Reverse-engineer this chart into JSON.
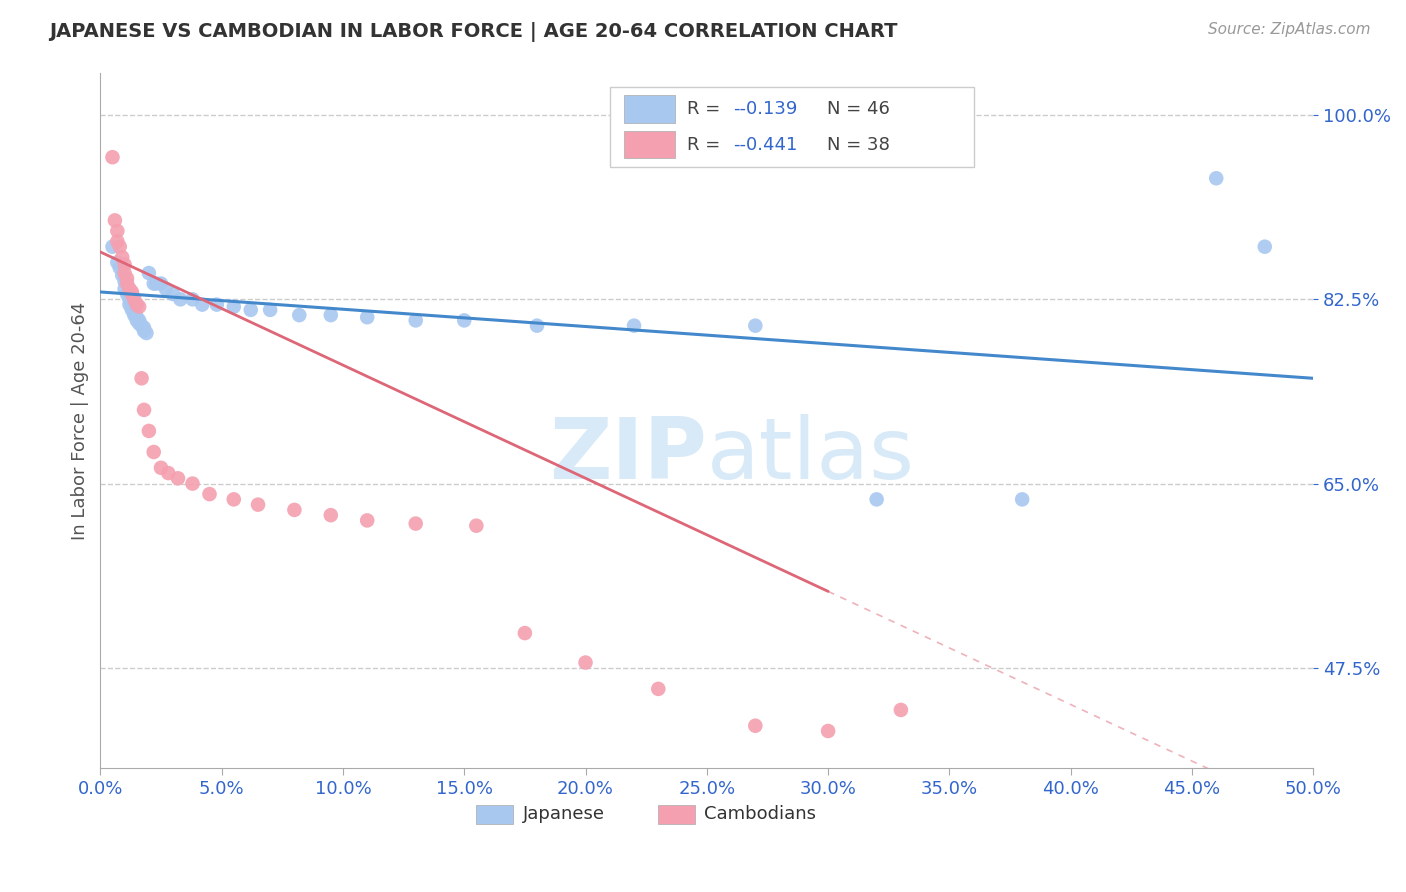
{
  "title": "JAPANESE VS CAMBODIAN IN LABOR FORCE | AGE 20-64 CORRELATION CHART",
  "source_text": "Source: ZipAtlas.com",
  "ylabel": "In Labor Force | Age 20-64",
  "xlim": [
    0.0,
    0.5
  ],
  "ylim": [
    0.38,
    1.04
  ],
  "ytick_vals": [
    0.475,
    0.65,
    0.825,
    1.0
  ],
  "legend_r_japanese": "-0.139",
  "legend_n_japanese": "46",
  "legend_r_cambodian": "-0.441",
  "legend_n_cambodian": "38",
  "japanese_color": "#a8c8f0",
  "cambodian_color": "#f4a0b0",
  "japanese_line_color": "#4488cc",
  "cambodian_line_color": "#dd6677",
  "watermark_color": "#d8eaf8",
  "background_color": "#ffffff",
  "japanese_scatter_x": [
    0.005,
    0.007,
    0.008,
    0.009,
    0.01,
    0.01,
    0.011,
    0.012,
    0.012,
    0.013,
    0.013,
    0.014,
    0.014,
    0.015,
    0.015,
    0.016,
    0.016,
    0.017,
    0.018,
    0.018,
    0.019,
    0.02,
    0.022,
    0.023,
    0.025,
    0.027,
    0.03,
    0.033,
    0.038,
    0.042,
    0.048,
    0.055,
    0.062,
    0.07,
    0.082,
    0.095,
    0.11,
    0.13,
    0.15,
    0.18,
    0.22,
    0.27,
    0.32,
    0.38,
    0.46,
    0.48
  ],
  "japanese_scatter_y": [
    0.875,
    0.86,
    0.855,
    0.848,
    0.842,
    0.835,
    0.83,
    0.825,
    0.82,
    0.818,
    0.815,
    0.812,
    0.81,
    0.808,
    0.805,
    0.805,
    0.802,
    0.8,
    0.798,
    0.795,
    0.793,
    0.85,
    0.84,
    0.84,
    0.84,
    0.835,
    0.83,
    0.825,
    0.825,
    0.82,
    0.82,
    0.818,
    0.815,
    0.815,
    0.81,
    0.81,
    0.808,
    0.805,
    0.805,
    0.8,
    0.8,
    0.8,
    0.635,
    0.635,
    0.94,
    0.875
  ],
  "cambodian_scatter_x": [
    0.005,
    0.006,
    0.007,
    0.007,
    0.008,
    0.009,
    0.01,
    0.01,
    0.011,
    0.011,
    0.012,
    0.013,
    0.013,
    0.014,
    0.015,
    0.016,
    0.017,
    0.018,
    0.02,
    0.022,
    0.025,
    0.028,
    0.032,
    0.038,
    0.045,
    0.055,
    0.065,
    0.08,
    0.095,
    0.11,
    0.13,
    0.155,
    0.175,
    0.2,
    0.23,
    0.27,
    0.3,
    0.33
  ],
  "cambodian_scatter_y": [
    0.96,
    0.9,
    0.89,
    0.88,
    0.875,
    0.865,
    0.858,
    0.85,
    0.845,
    0.84,
    0.835,
    0.832,
    0.83,
    0.825,
    0.82,
    0.818,
    0.75,
    0.72,
    0.7,
    0.68,
    0.665,
    0.66,
    0.655,
    0.65,
    0.64,
    0.635,
    0.63,
    0.625,
    0.62,
    0.615,
    0.612,
    0.61,
    0.508,
    0.48,
    0.455,
    0.42,
    0.415,
    0.435
  ],
  "japanese_trend_x": [
    0.0,
    0.5
  ],
  "japanese_trend_y": [
    0.832,
    0.75
  ],
  "cambodian_trend_x": [
    0.0,
    0.335
  ],
  "cambodian_trend_y": [
    0.87,
    0.51
  ],
  "grid_color": "#cccccc",
  "title_color": "#333333",
  "axis_label_color": "#3366cc",
  "ylabel_color": "#555555",
  "source_color": "#999999"
}
